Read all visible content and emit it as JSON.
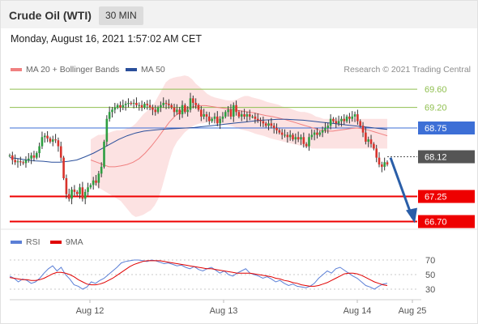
{
  "header": {
    "title": "Crude Oil (WTI)",
    "interval": "30 MIN"
  },
  "datetime": "Monday, August 16, 2021 1:57:02 AM CET",
  "legend": [
    {
      "label": "MA 20 + Bollinger Bands",
      "color": "#f08080"
    },
    {
      "label": "MA 50",
      "color": "#2a4f9b"
    }
  ],
  "credit": "Research © 2021 Trading Central",
  "rsi_legend": [
    {
      "label": "RSI",
      "color": "#5b7fd6"
    },
    {
      "label": "9MA",
      "color": "#e00000"
    }
  ],
  "chart_data": [
    {
      "type": "candlestick",
      "x_labels": [
        "Aug 12",
        "Aug 13",
        "Aug 14",
        "Aug 25"
      ],
      "ylim": [
        66.55,
        69.85
      ],
      "levels": [
        {
          "label": "69.60",
          "value": 69.6,
          "color": "#8fbf4f",
          "style": "line",
          "label_style": "text"
        },
        {
          "label": "69.20",
          "value": 69.2,
          "color": "#8fbf4f",
          "style": "line",
          "label_style": "text"
        },
        {
          "label": "68.75",
          "value": 68.75,
          "color": "#3d6fd6",
          "style": "line",
          "label_style": "box"
        },
        {
          "label": "68.12",
          "value": 68.12,
          "color": "#555555",
          "style": "dotted",
          "label_style": "box"
        },
        {
          "label": "67.25",
          "value": 67.25,
          "color": "#ee0000",
          "style": "line",
          "label_style": "box"
        },
        {
          "label": "66.70",
          "value": 66.7,
          "color": "#ee0000",
          "style": "line",
          "label_style": "box"
        }
      ],
      "closes": [
        68.15,
        68.05,
        68.0,
        68.02,
        68.0,
        67.98,
        68.05,
        68.08,
        68.15,
        68.1,
        68.2,
        68.35,
        68.55,
        68.58,
        68.52,
        68.45,
        68.5,
        68.48,
        68.35,
        68.1,
        67.65,
        67.3,
        67.2,
        67.4,
        67.35,
        67.3,
        67.45,
        67.2,
        67.35,
        67.45,
        67.5,
        67.6,
        67.55,
        67.75,
        67.9,
        68.45,
        68.95,
        69.1,
        69.15,
        69.2,
        69.25,
        69.2,
        69.25,
        69.28,
        69.3,
        69.28,
        69.3,
        69.25,
        69.25,
        69.2,
        69.28,
        69.25,
        69.2,
        69.15,
        69.1,
        69.2,
        69.25,
        69.3,
        69.28,
        69.25,
        69.2,
        69.1,
        69.15,
        69.05,
        69.25,
        69.1,
        69.15,
        69.4,
        69.3,
        69.25,
        69.15,
        69.0,
        69.05,
        69.0,
        68.9,
        68.95,
        69.0,
        68.85,
        68.95,
        69.0,
        69.1,
        69.15,
        69.0,
        69.25,
        69.1,
        69.0,
        69.05,
        69.0,
        69.05,
        69.0,
        69.0,
        68.95,
        68.92,
        68.9,
        68.85,
        68.8,
        68.85,
        68.8,
        68.75,
        68.7,
        68.65,
        68.6,
        68.6,
        68.55,
        68.6,
        68.5,
        68.55,
        68.5,
        68.55,
        68.4,
        68.35,
        68.55,
        68.6,
        68.65,
        68.6,
        68.65,
        68.7,
        68.75,
        68.8,
        68.95,
        68.9,
        68.85,
        68.9,
        68.95,
        68.9,
        69.0,
        68.95,
        69.0,
        69.05,
        68.9,
        68.8,
        68.65,
        68.45,
        68.5,
        68.4,
        68.3,
        68.1,
        67.95,
        67.9,
        68.0,
        67.95
      ],
      "band_upper": [
        68.5,
        68.55,
        68.6,
        68.6,
        68.62,
        68.65,
        68.68,
        68.7,
        68.7,
        68.72,
        68.75,
        68.78,
        68.85,
        68.95,
        69.05,
        69.12,
        69.2,
        69.3,
        69.45,
        69.6,
        69.75,
        69.82,
        69.85,
        69.87,
        69.88,
        69.9,
        69.88,
        69.82,
        69.72,
        69.65,
        69.58,
        69.5,
        69.45,
        69.42,
        69.4,
        69.38,
        69.36,
        69.35,
        69.35,
        69.38,
        69.42,
        69.45,
        69.45,
        69.42,
        69.4,
        69.38,
        69.35,
        69.32,
        69.3,
        69.28,
        69.26,
        69.22,
        69.2,
        69.18,
        69.15,
        69.12,
        69.1,
        69.1,
        69.08,
        69.05,
        69.0,
        68.98,
        68.95,
        68.95,
        68.95,
        68.95,
        68.95,
        68.95,
        68.95,
        68.95,
        68.95,
        68.95,
        68.95,
        68.95,
        68.95,
        68.95,
        68.95,
        68.95,
        68.95,
        68.95
      ],
      "band_lower": [
        67.55,
        67.5,
        67.45,
        67.4,
        67.35,
        67.3,
        67.25,
        67.2,
        67.15,
        67.05,
        66.95,
        66.85,
        66.8,
        66.82,
        66.85,
        66.9,
        66.95,
        67.05,
        67.2,
        67.45,
        67.75,
        68.05,
        68.3,
        68.45,
        68.55,
        68.65,
        68.72,
        68.78,
        68.82,
        68.85,
        68.85,
        68.88,
        68.9,
        68.9,
        68.88,
        68.85,
        68.82,
        68.8,
        68.78,
        68.75,
        68.72,
        68.7,
        68.68,
        68.65,
        68.62,
        68.6,
        68.58,
        68.55,
        68.52,
        68.5,
        68.48,
        68.46,
        68.44,
        68.42,
        68.4,
        68.38,
        68.36,
        68.34,
        68.32,
        68.3,
        68.3,
        68.3,
        68.3,
        68.3,
        68.3,
        68.3,
        68.3,
        68.3,
        68.3,
        68.3,
        68.3,
        68.3,
        68.3,
        68.3,
        68.3,
        68.3,
        68.3,
        68.3,
        68.3,
        68.3
      ],
      "ma50": [
        68.1,
        68.08,
        68.05,
        68.03,
        68.02,
        68.0,
        68.0,
        68.02,
        68.05,
        68.12,
        68.2,
        68.3,
        68.4,
        68.5,
        68.58,
        68.64,
        68.68,
        68.7,
        68.72,
        68.73,
        68.74,
        68.75,
        68.76,
        68.78,
        68.8,
        68.82,
        68.84,
        68.86,
        68.88,
        68.9,
        68.92,
        68.93,
        68.94,
        68.94,
        68.93,
        68.92,
        68.9,
        68.88,
        68.86,
        68.84,
        68.82,
        68.8,
        68.78,
        68.76,
        68.74,
        68.72
      ],
      "ma20": [
        68.05,
        68.0,
        67.95,
        67.9,
        67.9,
        67.92,
        67.95,
        68.0,
        68.08,
        68.2,
        68.35,
        68.52,
        68.7,
        68.88,
        69.02,
        69.12,
        69.18,
        69.22,
        69.24,
        69.24,
        69.22,
        69.2,
        69.18,
        69.16,
        69.14,
        69.12,
        69.1,
        69.08,
        69.05,
        69.02,
        69.0,
        68.97,
        68.94,
        68.9,
        68.86,
        68.82,
        68.78,
        68.74,
        68.7,
        68.68,
        68.68,
        68.7,
        68.72,
        68.74,
        68.75,
        68.73,
        68.7,
        68.66,
        68.62,
        68.58
      ]
    },
    {
      "type": "line",
      "name_series": [
        "RSI",
        "9MA"
      ],
      "ylim": [
        20,
        80
      ],
      "y_ticks": [
        70,
        50,
        30
      ],
      "rsi": [
        48,
        45,
        40,
        44,
        42,
        38,
        40,
        45,
        52,
        58,
        62,
        55,
        60,
        50,
        44,
        36,
        34,
        30,
        33,
        40,
        38,
        42,
        45,
        50,
        55,
        60,
        66,
        68,
        69,
        70,
        70,
        69,
        68,
        70,
        69,
        67,
        65,
        66,
        64,
        62,
        63,
        60,
        58,
        61,
        57,
        55,
        58,
        60,
        56,
        52,
        55,
        50,
        48,
        52,
        55,
        58,
        52,
        50,
        48,
        45,
        47,
        44,
        40,
        42,
        38,
        35,
        37,
        34,
        33,
        32,
        34,
        38,
        45,
        50,
        55,
        52,
        58,
        60,
        56,
        52,
        48,
        45,
        40,
        35,
        33,
        30,
        34,
        37,
        38
      ],
      "ma9": [
        46,
        45,
        44,
        43,
        43,
        42,
        42,
        43,
        45,
        48,
        51,
        53,
        53,
        52,
        50,
        47,
        43,
        40,
        37,
        36,
        36,
        37,
        39,
        42,
        45,
        49,
        53,
        57,
        61,
        64,
        66,
        68,
        69,
        69,
        69,
        69,
        68,
        67,
        66,
        65,
        64,
        63,
        62,
        61,
        60,
        59,
        58,
        58,
        57,
        56,
        55,
        54,
        53,
        52,
        52,
        52,
        52,
        51,
        50,
        49,
        48,
        47,
        45,
        44,
        42,
        41,
        39,
        38,
        36,
        35,
        34,
        34,
        35,
        37,
        39,
        42,
        45,
        48,
        51,
        52,
        52,
        51,
        49,
        46,
        43,
        40,
        38,
        36,
        35
      ]
    }
  ]
}
